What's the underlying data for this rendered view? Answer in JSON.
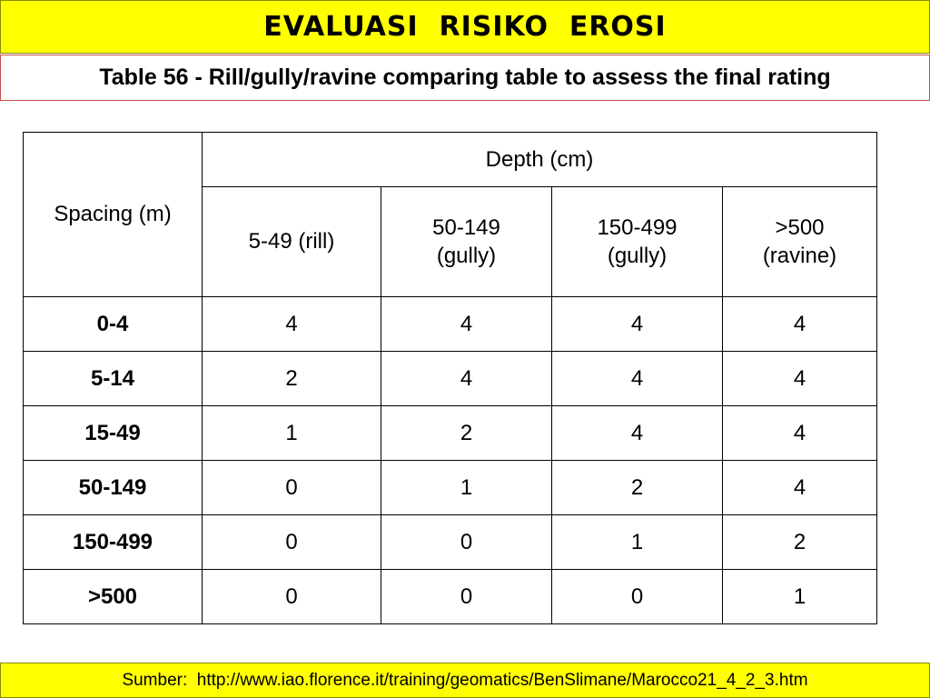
{
  "header": {
    "title": "EVALUASI  RISIKO  EROSI",
    "subtitle": "Table 56 - Rill/gully/ravine comparing table to assess the final rating"
  },
  "table": {
    "row_header_label": "Spacing (m)",
    "group_header_label": "Depth (cm)",
    "columns": [
      {
        "line1": "5-49 (rill)",
        "line2": ""
      },
      {
        "line1": "50-149",
        "line2": "(gully)"
      },
      {
        "line1": "150-499",
        "line2": "(gully)"
      },
      {
        "line1": ">500",
        "line2": "(ravine)"
      }
    ],
    "rows": [
      {
        "spacing": "0-4",
        "values": [
          "4",
          "4",
          "4",
          "4"
        ]
      },
      {
        "spacing": "5-14",
        "values": [
          "2",
          "4",
          "4",
          "4"
        ]
      },
      {
        "spacing": "15-49",
        "values": [
          "1",
          "2",
          "4",
          "4"
        ]
      },
      {
        "spacing": "50-149",
        "values": [
          "0",
          "1",
          "2",
          "4"
        ]
      },
      {
        "spacing": "150-499",
        "values": [
          "0",
          "0",
          "1",
          "2"
        ]
      },
      {
        "spacing": ">500",
        "values": [
          "0",
          "0",
          "0",
          "1"
        ]
      }
    ]
  },
  "footer": {
    "source": "Sumber:  http://www.iao.florence.it/training/geomatics/BenSlimane/Marocco21_4_2_3.htm"
  }
}
